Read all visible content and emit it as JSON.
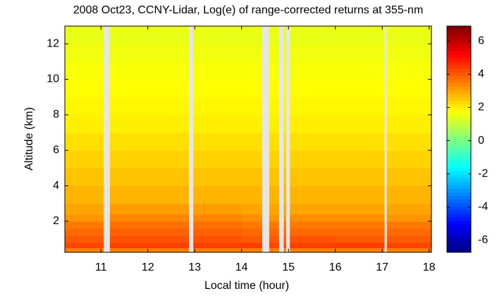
{
  "chart_data": {
    "type": "heatmap",
    "title": "2008 Oct23, CCNY-Lidar, Log(e) of range-corrected returns at 355-nm",
    "x_label": "Local time (hour)",
    "y_label": "Altitude (km)",
    "xlim": [
      10.23,
      18.05
    ],
    "xticks": [
      11,
      12,
      13,
      14,
      15,
      16,
      17,
      18
    ],
    "ylim": [
      0.25,
      13
    ],
    "yticks": [
      2,
      4,
      6,
      8,
      10,
      12
    ],
    "colormap": "jet",
    "clim": [
      -6.72,
      6.9
    ],
    "cticks": [
      6,
      4,
      2,
      0,
      -2,
      -4,
      -6
    ],
    "gap_color": "#e6e6e6",
    "x_edges": [
      10.23,
      11.06,
      11.19,
      12.0,
      12.88,
      12.97,
      14.0,
      14.44,
      14.59,
      14.8,
      14.9,
      14.95,
      15.03,
      16.0,
      17.05,
      17.1,
      18.05
    ],
    "y_edges": [
      0.25,
      0.5,
      0.8,
      1.2,
      1.6,
      2.0,
      2.4,
      3,
      4,
      5,
      6,
      7,
      8,
      9,
      10,
      11,
      12,
      13
    ],
    "z": [
      [
        3.5,
        null,
        3.5,
        3.5,
        null,
        3.5,
        3.5,
        null,
        3.5,
        null,
        3.5,
        null,
        3.5,
        3.5,
        null,
        3.5
      ],
      [
        4.3,
        null,
        4.4,
        4.4,
        null,
        4.4,
        4.4,
        null,
        4.3,
        null,
        4.3,
        null,
        4.4,
        4.4,
        null,
        4.3
      ],
      [
        4.0,
        null,
        4.1,
        4.1,
        null,
        4.1,
        4.0,
        null,
        4.0,
        null,
        4.0,
        null,
        4.1,
        4.0,
        null,
        4.0
      ],
      [
        3.8,
        null,
        3.9,
        3.9,
        null,
        3.9,
        3.8,
        null,
        3.8,
        null,
        3.8,
        null,
        3.8,
        3.8,
        null,
        3.8
      ],
      [
        3.6,
        null,
        3.7,
        3.7,
        null,
        3.7,
        3.6,
        null,
        3.6,
        null,
        3.6,
        null,
        3.6,
        3.6,
        null,
        3.6
      ],
      [
        3.2,
        null,
        3.4,
        3.4,
        null,
        3.4,
        3.3,
        null,
        3.2,
        null,
        3.2,
        null,
        3.3,
        3.3,
        null,
        3.2
      ],
      [
        3.0,
        null,
        3.1,
        3.1,
        null,
        3.1,
        3.0,
        null,
        3.0,
        null,
        3.0,
        null,
        3.0,
        3.0,
        null,
        3.0
      ],
      [
        2.8,
        null,
        2.8,
        2.8,
        null,
        2.8,
        2.8,
        null,
        2.8,
        null,
        2.8,
        null,
        2.8,
        2.8,
        null,
        2.8
      ],
      [
        2.6,
        null,
        2.6,
        2.6,
        null,
        2.6,
        2.6,
        null,
        2.6,
        null,
        2.6,
        null,
        2.6,
        2.6,
        null,
        2.6
      ],
      [
        2.4,
        null,
        2.4,
        2.4,
        null,
        2.4,
        2.4,
        null,
        2.4,
        null,
        2.4,
        null,
        2.4,
        2.4,
        null,
        2.4
      ],
      [
        2.2,
        null,
        2.2,
        2.2,
        null,
        2.2,
        2.2,
        null,
        2.2,
        null,
        2.2,
        null,
        2.2,
        2.2,
        null,
        2.2
      ],
      [
        2.0,
        null,
        2.0,
        2.0,
        null,
        2.0,
        2.0,
        null,
        2.0,
        null,
        2.0,
        null,
        2.0,
        2.0,
        null,
        2.0
      ],
      [
        1.9,
        null,
        1.9,
        1.9,
        null,
        1.9,
        1.9,
        null,
        1.9,
        null,
        1.9,
        null,
        1.9,
        1.9,
        null,
        1.9
      ],
      [
        1.8,
        null,
        1.8,
        1.8,
        null,
        1.8,
        1.8,
        null,
        1.8,
        null,
        1.8,
        null,
        1.8,
        1.8,
        null,
        1.8
      ],
      [
        1.7,
        null,
        1.7,
        1.7,
        null,
        1.7,
        1.7,
        null,
        1.7,
        null,
        1.7,
        null,
        1.7,
        1.7,
        null,
        1.7
      ],
      [
        1.6,
        null,
        1.6,
        1.6,
        null,
        1.6,
        1.6,
        null,
        1.6,
        null,
        1.6,
        null,
        1.6,
        1.6,
        null,
        1.6
      ],
      [
        1.5,
        null,
        1.5,
        1.5,
        null,
        1.5,
        1.5,
        null,
        1.5,
        null,
        1.5,
        null,
        1.5,
        1.5,
        null,
        1.5
      ]
    ]
  }
}
